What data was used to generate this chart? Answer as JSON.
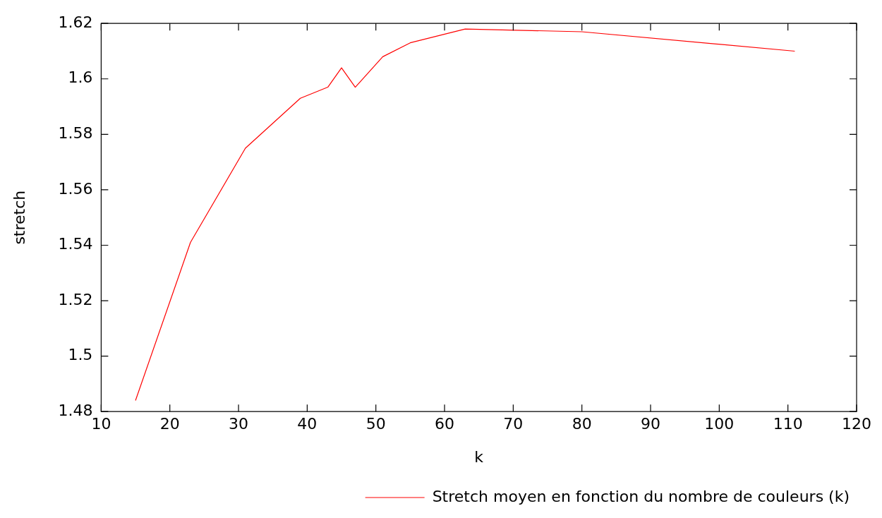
{
  "chart_data": {
    "type": "line",
    "xlabel": "k",
    "ylabel": "stretch",
    "xlim": [
      10,
      120
    ],
    "xticks": [
      10,
      20,
      30,
      40,
      50,
      60,
      70,
      80,
      90,
      100,
      110,
      120
    ],
    "ylim": [
      1.48,
      1.62
    ],
    "yticks": [
      1.48,
      1.5,
      1.52,
      1.54,
      1.56,
      1.58,
      1.6,
      1.62
    ],
    "grid": false,
    "legend": "bottom right",
    "marker": "none",
    "line_style": "solid",
    "series": [
      {
        "name": "Stretch moyen en fonction du nombre de couleurs (k)",
        "color": "#ff0000",
        "x": [
          15,
          23,
          31,
          39,
          43,
          45,
          47,
          51,
          55,
          63,
          80,
          111
        ],
        "values": [
          1.484,
          1.541,
          1.575,
          1.593,
          1.597,
          1.604,
          1.597,
          1.608,
          1.613,
          1.618,
          1.617,
          1.61
        ]
      }
    ]
  }
}
